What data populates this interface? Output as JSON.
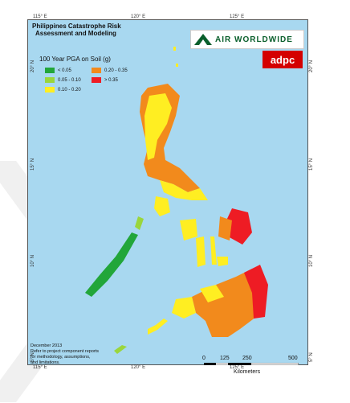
{
  "title": {
    "line1": "Philippines Catastrophe Risk",
    "line2": "Assessment and Modeling"
  },
  "logos": {
    "air": "AIR WORLDWIDE",
    "adpc": "adpc"
  },
  "legend": {
    "title": "100 Year PGA on Soil (g)",
    "items": [
      {
        "label": "< 0.05",
        "color": "#22a63a"
      },
      {
        "label": "0.20 - 0.35",
        "color": "#f28a1c"
      },
      {
        "label": "0.05 - 0.10",
        "color": "#9ad63c"
      },
      {
        "label": "> 0.35",
        "color": "#ee1c24"
      },
      {
        "label": "0.10 - 0.20",
        "color": "#ffee22"
      }
    ]
  },
  "axis": {
    "top_ticks": [
      "115° E",
      "120° E",
      "125° E"
    ],
    "bottom_ticks": [
      "115° E",
      "120° E",
      "125° E"
    ],
    "left_ticks": [
      "20° N",
      "15° N",
      "10° N",
      "5° N"
    ],
    "right_ticks": [
      "20° N",
      "15° N",
      "10° N",
      "5° N"
    ]
  },
  "footnote": {
    "line1": "December 2013",
    "line2": "Refer to project component reports",
    "line3": "for methodology, assumptions,",
    "line4": "and limitations."
  },
  "scale": {
    "labels": [
      "0",
      "125",
      "250",
      "500"
    ],
    "unit": "Kilometers"
  },
  "colors": {
    "sea": "#a8d8f0",
    "low": "#22a63a",
    "lowmid": "#9ad63c",
    "mid": "#ffee22",
    "high": "#f28a1c",
    "veryhigh": "#ee1c24"
  }
}
